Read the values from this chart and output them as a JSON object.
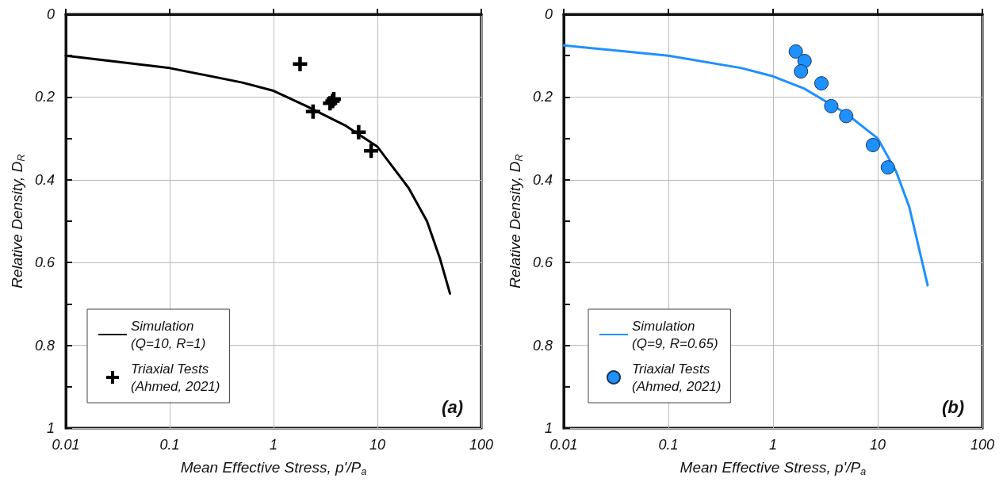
{
  "chart_data": [
    {
      "type": "scatter",
      "xlabel": "Mean Effective Stress, p'/P$_{a}$",
      "ylabel": "Relative Density, D$_{R}$",
      "log": "x",
      "grid": true,
      "legend": "bottom left",
      "xlim": [
        0.01,
        100
      ],
      "xticks": [
        0.01,
        0.1,
        1,
        10,
        100
      ],
      "ylim": [
        1,
        0
      ],
      "yticks": [
        0,
        0.2,
        0.4,
        0.6,
        0.8,
        1
      ],
      "annotations": [
        "(a)"
      ],
      "series": [
        {
          "name": "Simulation\n(Q=10, R=1)",
          "type": "line",
          "marker": "none",
          "line_style": "solid",
          "color": "#000000",
          "x": [
            0.01,
            0.1,
            0.5,
            1,
            2,
            5,
            10,
            20,
            30,
            40,
            50
          ],
          "values": [
            0.1,
            0.13,
            0.165,
            0.185,
            0.22,
            0.27,
            0.32,
            0.42,
            0.5,
            0.59,
            0.675
          ]
        },
        {
          "name": "Triaxial Tests\n(Ahmed, 2021)",
          "marker": "cross",
          "color": "#000000",
          "x": [
            1.8,
            2.4,
            3.5,
            3.7,
            3.8,
            6.6,
            8.7
          ],
          "values": [
            0.12,
            0.235,
            0.215,
            0.21,
            0.205,
            0.285,
            0.33
          ]
        }
      ]
    },
    {
      "type": "scatter",
      "xlabel": "Mean Effective Stress, p'/P$_{a}$",
      "ylabel": "Relative Density, D$_{R}$",
      "log": "x",
      "grid": true,
      "legend": "bottom left",
      "xlim": [
        0.01,
        100
      ],
      "xticks": [
        0.01,
        0.1,
        1,
        10,
        100
      ],
      "ylim": [
        1,
        0
      ],
      "yticks": [
        0,
        0.2,
        0.4,
        0.6,
        0.8,
        1
      ],
      "annotations": [
        "(b)"
      ],
      "series": [
        {
          "name": "Simulation\n(Q=9, R=0.65)",
          "type": "line",
          "marker": "none",
          "line_style": "solid",
          "color": "#1e90ff",
          "x": [
            0.01,
            0.1,
            0.5,
            1,
            2,
            5,
            10,
            15,
            20,
            30
          ],
          "values": [
            0.075,
            0.1,
            0.13,
            0.15,
            0.18,
            0.24,
            0.3,
            0.38,
            0.465,
            0.655
          ]
        },
        {
          "name": "Triaxial Tests\n(Ahmed, 2021)",
          "marker": "circle",
          "color": "#1e90ff",
          "x": [
            1.65,
            2.0,
            1.85,
            2.9,
            3.6,
            5.0,
            9.0,
            12.5
          ],
          "values": [
            0.09,
            0.113,
            0.138,
            0.167,
            0.222,
            0.246,
            0.316,
            0.37
          ]
        }
      ]
    }
  ]
}
